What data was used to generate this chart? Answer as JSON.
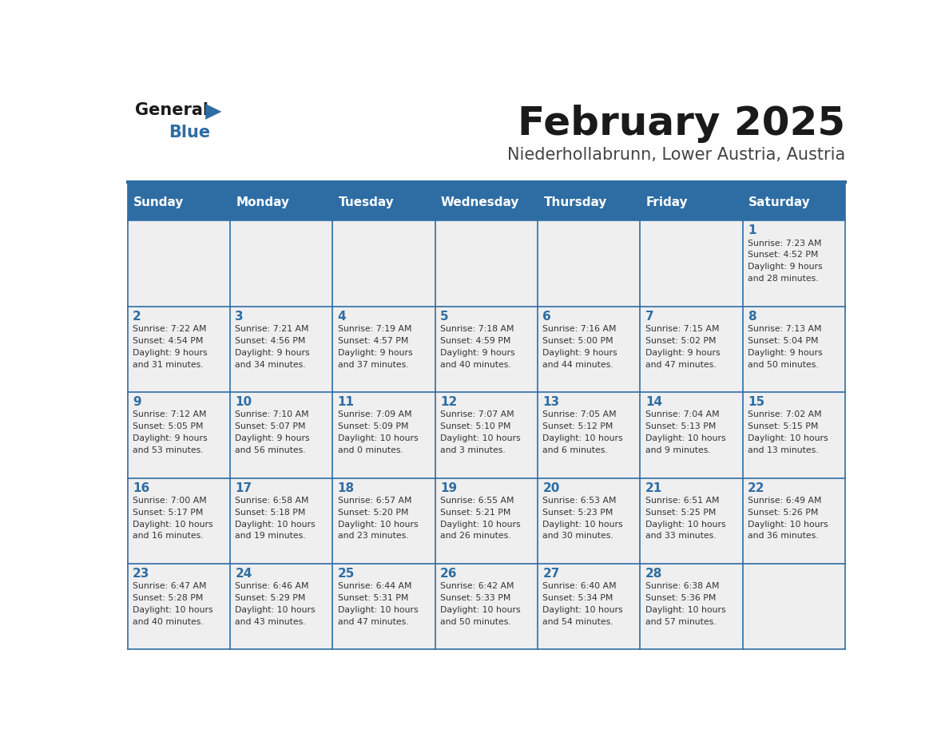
{
  "title": "February 2025",
  "subtitle": "Niederhollabrunn, Lower Austria, Austria",
  "days_of_week": [
    "Sunday",
    "Monday",
    "Tuesday",
    "Wednesday",
    "Thursday",
    "Friday",
    "Saturday"
  ],
  "header_bg": "#2E6DA4",
  "header_text": "#FFFFFF",
  "cell_bg_light": "#EFEFEF",
  "text_color": "#333333",
  "day_num_color": "#2E6DA4",
  "border_color": "#2E6DA4",
  "logo_blue_color": "#2E6DA4",
  "calendar_data": [
    [
      null,
      null,
      null,
      null,
      null,
      null,
      {
        "day": "1",
        "sunrise": "7:23 AM",
        "sunset": "4:52 PM",
        "daylight_h": "9 hours",
        "daylight_m": "and 28 minutes."
      }
    ],
    [
      {
        "day": "2",
        "sunrise": "7:22 AM",
        "sunset": "4:54 PM",
        "daylight_h": "9 hours",
        "daylight_m": "and 31 minutes."
      },
      {
        "day": "3",
        "sunrise": "7:21 AM",
        "sunset": "4:56 PM",
        "daylight_h": "9 hours",
        "daylight_m": "and 34 minutes."
      },
      {
        "day": "4",
        "sunrise": "7:19 AM",
        "sunset": "4:57 PM",
        "daylight_h": "9 hours",
        "daylight_m": "and 37 minutes."
      },
      {
        "day": "5",
        "sunrise": "7:18 AM",
        "sunset": "4:59 PM",
        "daylight_h": "9 hours",
        "daylight_m": "and 40 minutes."
      },
      {
        "day": "6",
        "sunrise": "7:16 AM",
        "sunset": "5:00 PM",
        "daylight_h": "9 hours",
        "daylight_m": "and 44 minutes."
      },
      {
        "day": "7",
        "sunrise": "7:15 AM",
        "sunset": "5:02 PM",
        "daylight_h": "9 hours",
        "daylight_m": "and 47 minutes."
      },
      {
        "day": "8",
        "sunrise": "7:13 AM",
        "sunset": "5:04 PM",
        "daylight_h": "9 hours",
        "daylight_m": "and 50 minutes."
      }
    ],
    [
      {
        "day": "9",
        "sunrise": "7:12 AM",
        "sunset": "5:05 PM",
        "daylight_h": "9 hours",
        "daylight_m": "and 53 minutes."
      },
      {
        "day": "10",
        "sunrise": "7:10 AM",
        "sunset": "5:07 PM",
        "daylight_h": "9 hours",
        "daylight_m": "and 56 minutes."
      },
      {
        "day": "11",
        "sunrise": "7:09 AM",
        "sunset": "5:09 PM",
        "daylight_h": "10 hours",
        "daylight_m": "and 0 minutes."
      },
      {
        "day": "12",
        "sunrise": "7:07 AM",
        "sunset": "5:10 PM",
        "daylight_h": "10 hours",
        "daylight_m": "and 3 minutes."
      },
      {
        "day": "13",
        "sunrise": "7:05 AM",
        "sunset": "5:12 PM",
        "daylight_h": "10 hours",
        "daylight_m": "and 6 minutes."
      },
      {
        "day": "14",
        "sunrise": "7:04 AM",
        "sunset": "5:13 PM",
        "daylight_h": "10 hours",
        "daylight_m": "and 9 minutes."
      },
      {
        "day": "15",
        "sunrise": "7:02 AM",
        "sunset": "5:15 PM",
        "daylight_h": "10 hours",
        "daylight_m": "and 13 minutes."
      }
    ],
    [
      {
        "day": "16",
        "sunrise": "7:00 AM",
        "sunset": "5:17 PM",
        "daylight_h": "10 hours",
        "daylight_m": "and 16 minutes."
      },
      {
        "day": "17",
        "sunrise": "6:58 AM",
        "sunset": "5:18 PM",
        "daylight_h": "10 hours",
        "daylight_m": "and 19 minutes."
      },
      {
        "day": "18",
        "sunrise": "6:57 AM",
        "sunset": "5:20 PM",
        "daylight_h": "10 hours",
        "daylight_m": "and 23 minutes."
      },
      {
        "day": "19",
        "sunrise": "6:55 AM",
        "sunset": "5:21 PM",
        "daylight_h": "10 hours",
        "daylight_m": "and 26 minutes."
      },
      {
        "day": "20",
        "sunrise": "6:53 AM",
        "sunset": "5:23 PM",
        "daylight_h": "10 hours",
        "daylight_m": "and 30 minutes."
      },
      {
        "day": "21",
        "sunrise": "6:51 AM",
        "sunset": "5:25 PM",
        "daylight_h": "10 hours",
        "daylight_m": "and 33 minutes."
      },
      {
        "day": "22",
        "sunrise": "6:49 AM",
        "sunset": "5:26 PM",
        "daylight_h": "10 hours",
        "daylight_m": "and 36 minutes."
      }
    ],
    [
      {
        "day": "23",
        "sunrise": "6:47 AM",
        "sunset": "5:28 PM",
        "daylight_h": "10 hours",
        "daylight_m": "and 40 minutes."
      },
      {
        "day": "24",
        "sunrise": "6:46 AM",
        "sunset": "5:29 PM",
        "daylight_h": "10 hours",
        "daylight_m": "and 43 minutes."
      },
      {
        "day": "25",
        "sunrise": "6:44 AM",
        "sunset": "5:31 PM",
        "daylight_h": "10 hours",
        "daylight_m": "and 47 minutes."
      },
      {
        "day": "26",
        "sunrise": "6:42 AM",
        "sunset": "5:33 PM",
        "daylight_h": "10 hours",
        "daylight_m": "and 50 minutes."
      },
      {
        "day": "27",
        "sunrise": "6:40 AM",
        "sunset": "5:34 PM",
        "daylight_h": "10 hours",
        "daylight_m": "and 54 minutes."
      },
      {
        "day": "28",
        "sunrise": "6:38 AM",
        "sunset": "5:36 PM",
        "daylight_h": "10 hours",
        "daylight_m": "and 57 minutes."
      },
      null
    ]
  ]
}
